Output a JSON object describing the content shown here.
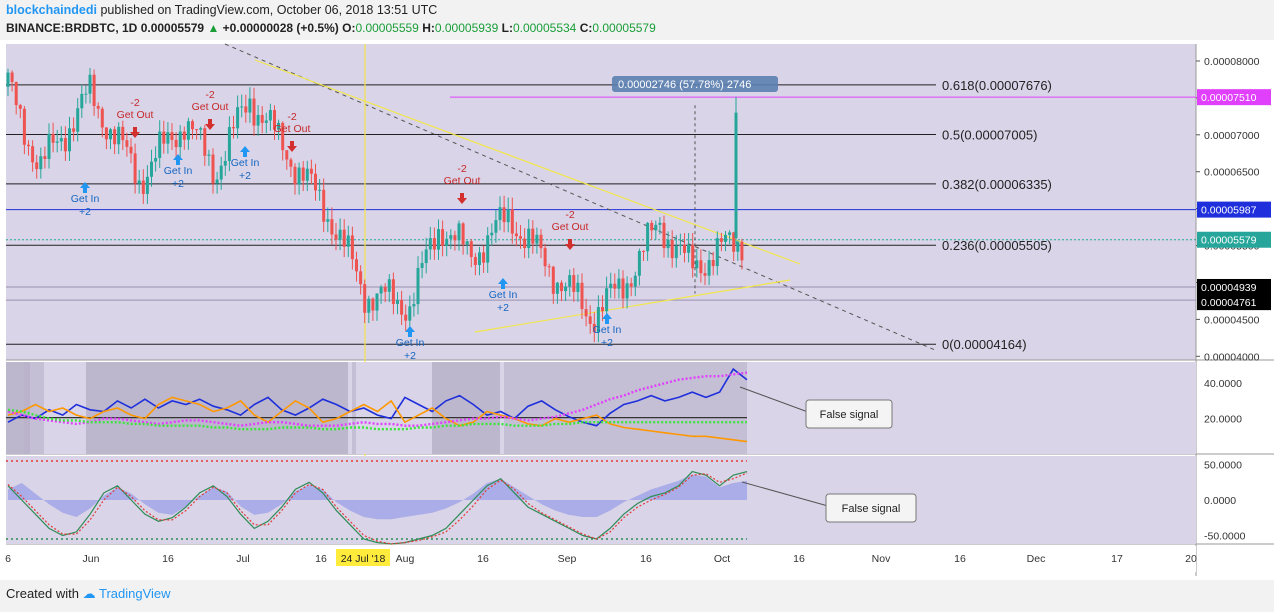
{
  "header": {
    "user": "blockchaindedi",
    "published": "published on TradingView.com, October 06, 2018 13:51 UTC",
    "symbol": "BINANCE:BRDBTC, 1D",
    "last": "0.00005579",
    "change": "+0.00000028 (+0.5%)",
    "o_label": "O:",
    "o_value": "0.00005559",
    "h_label": "H:",
    "h_value": "0.00005939",
    "l_label": "L:",
    "l_value": "0.00005534",
    "c_label": "C:",
    "c_value": "0.00005579"
  },
  "footer": {
    "created_with": "Created with",
    "brand": "TradingView"
  },
  "colors": {
    "bg": "#d9d4e8",
    "up": "#26a69a",
    "down": "#ef5350",
    "fib": "#222222",
    "yellow": "#f2e64a",
    "magenta": "#e040fb",
    "blue": "#1e2fdb",
    "orange": "#ff9800",
    "green": "#39e639"
  },
  "chart_data": [
    {
      "type": "candlestick",
      "title": "BINANCE:BRDBTC, 1D",
      "x_ticks": [
        "6",
        "Jun",
        "16",
        "Jul",
        "16",
        "24 Jul '18",
        "Aug",
        "16",
        "Sep",
        "16",
        "Oct",
        "16",
        "Nov",
        "16",
        "Dec",
        "17",
        "20"
      ],
      "y_ticks": [
        "0.00008000",
        "0.00007500",
        "0.00007000",
        "0.00006500",
        "0.00006000",
        "0.00005500",
        "0.00005000",
        "0.00004500",
        "0.00004000"
      ],
      "ylim": [
        3.95e-05,
        8.23e-05
      ],
      "price_labels": [
        {
          "text": "0.00007510",
          "value": 7.51e-05,
          "color": "#e040fb",
          "text_color": "#ffffff"
        },
        {
          "text": "0.00005987",
          "value": 5.987e-05,
          "color": "#1e2fdb",
          "text_color": "#ffffff"
        },
        {
          "text": "0.00005579",
          "value": 5.579e-05,
          "color": "#26a69a",
          "text_color": "#ffffff"
        },
        {
          "text": "0.00004939",
          "value": 4.939e-05,
          "color": "#000000",
          "text_color": "#ffffff"
        },
        {
          "text": "0.00004761",
          "value": 4.761e-05,
          "color": "#000000",
          "text_color": "#ffffff"
        }
      ],
      "fib_levels": [
        {
          "label": "0.618(0.00007676)",
          "value": 7.676e-05
        },
        {
          "label": "0.5(0.00007005)",
          "value": 7.005e-05
        },
        {
          "label": "0.382(0.00006335)",
          "value": 6.335e-05
        },
        {
          "label": "0.236(0.00005505)",
          "value": 5.505e-05
        },
        {
          "label": "0(0.00004164)",
          "value": 4.164e-05
        }
      ],
      "measure_label": "0.00002746 (57.78%) 2746",
      "signals": [
        {
          "kind": "in",
          "label": "Get In",
          "qty": "+2",
          "date": "2018-05-26"
        },
        {
          "kind": "out",
          "label": "Get Out",
          "qty": "-2",
          "date": "2018-06-10"
        },
        {
          "kind": "in",
          "label": "Get In",
          "qty": "+2",
          "date": "2018-06-17"
        },
        {
          "kind": "out",
          "label": "Get Out",
          "qty": "-2",
          "date": "2018-06-25"
        },
        {
          "kind": "in",
          "label": "Get In",
          "qty": "+2",
          "date": "2018-06-30"
        },
        {
          "kind": "out",
          "label": "Get Out",
          "qty": "-2",
          "date": "2018-07-08"
        },
        {
          "kind": "in",
          "label": "Get In",
          "qty": "+2",
          "date": "2018-08-06"
        },
        {
          "kind": "out",
          "label": "Get Out",
          "qty": "-2",
          "date": "2018-08-14"
        },
        {
          "kind": "in",
          "label": "Get In",
          "qty": "+2",
          "date": "2018-08-19"
        },
        {
          "kind": "out",
          "label": "Get Out",
          "qty": "-2",
          "date": "2018-09-01"
        },
        {
          "kind": "in",
          "label": "Get In",
          "qty": "+2",
          "date": "2018-09-06"
        }
      ]
    },
    {
      "type": "line",
      "panel": "DMI / ADX",
      "y_ticks": [
        "40.0000",
        "20.0000"
      ],
      "ylim": [
        0,
        52
      ],
      "annotation": "False signal",
      "series": [
        {
          "color": "#1e2fdb",
          "values": [
            18,
            22,
            20,
            25,
            22,
            28,
            25,
            24,
            30,
            26,
            31,
            26,
            30,
            28,
            31,
            27,
            25,
            22,
            28,
            32,
            25,
            22,
            26,
            31,
            28,
            24,
            26,
            22,
            20,
            32,
            28,
            24,
            30,
            33,
            28,
            22,
            24,
            20,
            27,
            30,
            25,
            21,
            18,
            16,
            23,
            28,
            30,
            33,
            30,
            32,
            35,
            32,
            35,
            48,
            42
          ]
        },
        {
          "color": "#ff9800",
          "values": [
            22,
            24,
            28,
            24,
            26,
            22,
            20,
            24,
            26,
            22,
            20,
            28,
            32,
            30,
            28,
            24,
            26,
            30,
            22,
            18,
            24,
            30,
            26,
            18,
            20,
            24,
            28,
            24,
            30,
            18,
            22,
            26,
            20,
            16,
            18,
            24,
            22,
            20,
            17,
            16,
            20,
            18,
            20,
            22,
            17,
            15,
            14,
            13,
            12,
            11,
            10,
            10,
            9,
            8,
            7
          ]
        },
        {
          "color": "#e040fb",
          "values": [
            24,
            22,
            20,
            19,
            18,
            17,
            18,
            20,
            20,
            19,
            18,
            17,
            18,
            19,
            19,
            18,
            17,
            16,
            17,
            18,
            18,
            17,
            16,
            16,
            16,
            17,
            18,
            17,
            17,
            16,
            16,
            17,
            18,
            19,
            20,
            20,
            21,
            20,
            19,
            20,
            21,
            23,
            25,
            28,
            31,
            33,
            36,
            38,
            40,
            42,
            43,
            44,
            44,
            45,
            46
          ]
        },
        {
          "color": "#39e639",
          "values": [
            25,
            24,
            22,
            20,
            19,
            19,
            18,
            18,
            18,
            17,
            17,
            16,
            16,
            16,
            16,
            15,
            15,
            14,
            14,
            14,
            15,
            15,
            15,
            14,
            14,
            15,
            15,
            14,
            14,
            14,
            15,
            15,
            16,
            16,
            17,
            17,
            17,
            16,
            16,
            16,
            17,
            17,
            18,
            18,
            18,
            18,
            18,
            18,
            18,
            18,
            18,
            18,
            18,
            18,
            18
          ]
        }
      ]
    },
    {
      "type": "line",
      "panel": "Oscillator",
      "y_ticks": [
        "50.0000",
        "0.0000",
        "-50.0000"
      ],
      "ylim": [
        -62,
        62
      ],
      "annotation": "False signal",
      "series": [
        {
          "color": "#2e8b57",
          "values": [
            20,
            0,
            -20,
            -40,
            -50,
            -45,
            -20,
            10,
            20,
            0,
            -20,
            -30,
            -25,
            -10,
            10,
            20,
            5,
            -20,
            -40,
            -30,
            -10,
            15,
            25,
            10,
            -15,
            -35,
            -55,
            -60,
            -62,
            -60,
            -55,
            -50,
            -40,
            -20,
            0,
            20,
            30,
            10,
            -10,
            -20,
            -30,
            -40,
            -50,
            -55,
            -40,
            -20,
            -5,
            5,
            10,
            20,
            40,
            35,
            20,
            35,
            40
          ]
        },
        {
          "color": "#e53935",
          "values": [
            22,
            5,
            -15,
            -35,
            -48,
            -48,
            -28,
            0,
            18,
            5,
            -15,
            -28,
            -28,
            -15,
            5,
            18,
            10,
            -15,
            -35,
            -35,
            -15,
            10,
            22,
            15,
            -10,
            -30,
            -50,
            -58,
            -62,
            -60,
            -57,
            -52,
            -45,
            -28,
            -8,
            15,
            28,
            15,
            -5,
            -18,
            -28,
            -38,
            -48,
            -55,
            -45,
            -25,
            -10,
            0,
            8,
            18,
            35,
            37,
            25,
            30,
            38
          ]
        }
      ],
      "histogram": {
        "color": "#7b86e6",
        "values": [
          5,
          8,
          3,
          -2,
          -6,
          -8,
          -4,
          2,
          6,
          3,
          -2,
          -6,
          -7,
          -3,
          2,
          6,
          4,
          -3,
          -7,
          -6,
          -2,
          4,
          7,
          5,
          -1,
          -5,
          -8,
          -9,
          -9,
          -8,
          -7,
          -6,
          -4,
          -1,
          3,
          8,
          10,
          6,
          2,
          -2,
          -5,
          -7,
          -8,
          -8,
          -5,
          -1,
          2,
          5,
          7,
          9,
          12,
          11,
          6,
          8,
          9
        ]
      }
    }
  ]
}
